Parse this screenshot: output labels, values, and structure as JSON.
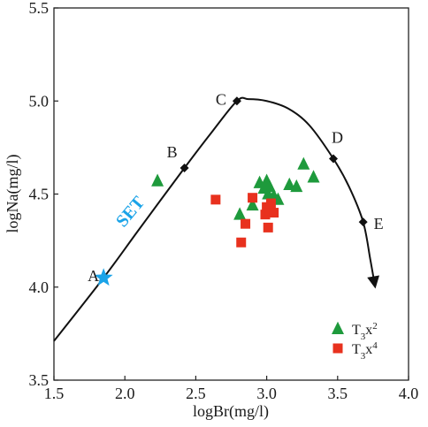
{
  "chart_data": {
    "type": "scatter",
    "xlabel": "logBr(mg/l)",
    "ylabel": "logNa(mg/l)",
    "xlim": [
      1.5,
      4.0
    ],
    "ylim": [
      3.5,
      5.5
    ],
    "xticks": [
      "1.5",
      "2.0",
      "2.5",
      "3.0",
      "3.5",
      "4.0"
    ],
    "yticks": [
      "3.5",
      "4.0",
      "4.5",
      "5.0",
      "5.5"
    ],
    "set_label": "SET",
    "curve_points": [
      {
        "x": 1.5,
        "y": 3.71
      },
      {
        "x": 1.85,
        "y": 4.05
      },
      {
        "x": 2.1,
        "y": 4.31
      },
      {
        "x": 2.42,
        "y": 4.64
      },
      {
        "x": 2.6,
        "y": 4.82
      },
      {
        "x": 2.79,
        "y": 5.0
      },
      {
        "x": 2.87,
        "y": 5.01
      },
      {
        "x": 3.0,
        "y": 5.0
      },
      {
        "x": 3.15,
        "y": 4.96
      },
      {
        "x": 3.3,
        "y": 4.87
      },
      {
        "x": 3.47,
        "y": 4.69
      },
      {
        "x": 3.58,
        "y": 4.54
      },
      {
        "x": 3.68,
        "y": 4.35
      },
      {
        "x": 3.73,
        "y": 4.15
      },
      {
        "x": 3.76,
        "y": 4.02
      }
    ],
    "labeled_points": [
      {
        "label": "A",
        "x": 1.85,
        "y": 4.05,
        "marker": "star"
      },
      {
        "label": "B",
        "x": 2.42,
        "y": 4.64,
        "marker": "diamond"
      },
      {
        "label": "C",
        "x": 2.79,
        "y": 5.0,
        "marker": "diamond"
      },
      {
        "label": "D",
        "x": 3.47,
        "y": 4.69,
        "marker": "diamond"
      },
      {
        "label": "E",
        "x": 3.68,
        "y": 4.35,
        "marker": "diamond"
      }
    ],
    "series": [
      {
        "name": "T3x2",
        "name_parts": {
          "base": "T",
          "sub": "3",
          "mid": "x",
          "sup": "2"
        },
        "marker": "triangle",
        "color": "#1e9a3c",
        "points": [
          {
            "x": 2.23,
            "y": 4.57
          },
          {
            "x": 2.81,
            "y": 4.39
          },
          {
            "x": 2.9,
            "y": 4.44
          },
          {
            "x": 2.95,
            "y": 4.56
          },
          {
            "x": 2.98,
            "y": 4.53
          },
          {
            "x": 3.0,
            "y": 4.57
          },
          {
            "x": 3.02,
            "y": 4.54
          },
          {
            "x": 3.05,
            "y": 4.49
          },
          {
            "x": 3.08,
            "y": 4.47
          },
          {
            "x": 3.16,
            "y": 4.55
          },
          {
            "x": 3.21,
            "y": 4.54
          },
          {
            "x": 3.26,
            "y": 4.66
          },
          {
            "x": 3.33,
            "y": 4.59
          },
          {
            "x": 3.01,
            "y": 4.5
          }
        ]
      },
      {
        "name": "T3x4",
        "name_parts": {
          "base": "T",
          "sub": "3",
          "mid": "x",
          "sup": "4"
        },
        "marker": "square",
        "color": "#e8311e",
        "points": [
          {
            "x": 2.64,
            "y": 4.47
          },
          {
            "x": 2.82,
            "y": 4.24
          },
          {
            "x": 2.85,
            "y": 4.34
          },
          {
            "x": 2.9,
            "y": 4.48
          },
          {
            "x": 2.99,
            "y": 4.39
          },
          {
            "x": 3.0,
            "y": 4.43
          },
          {
            "x": 3.01,
            "y": 4.32
          },
          {
            "x": 3.02,
            "y": 4.41
          },
          {
            "x": 3.03,
            "y": 4.45
          },
          {
            "x": 3.05,
            "y": 4.4
          }
        ]
      }
    ],
    "star_color": "#1aa3e8",
    "legend_position": "bottom-right"
  }
}
